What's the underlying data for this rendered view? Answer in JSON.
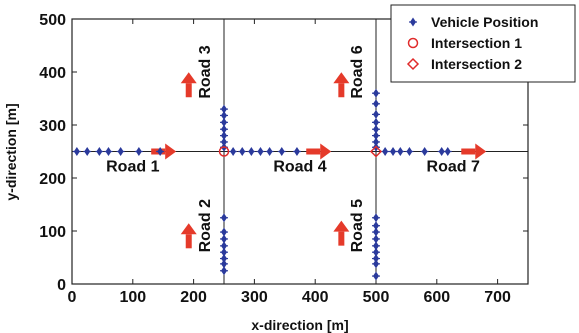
{
  "chart_data": {
    "type": "scatter",
    "title": "",
    "xlabel": "x-direction [m]",
    "ylabel": "y-direction [m]",
    "xlim": [
      0,
      750
    ],
    "ylim": [
      0,
      500
    ],
    "xticks": [
      0,
      100,
      200,
      300,
      400,
      500,
      600,
      700
    ],
    "yticks": [
      0,
      100,
      200,
      300,
      400,
      500
    ],
    "grid": false,
    "legend_position": "top-right",
    "colors": {
      "vehicle": "#2b3a9c",
      "intersection": "#e02b2b",
      "arrow": "#e53a2a",
      "road_line": "#222222"
    },
    "road_lines": [
      {
        "axis": "y",
        "value": 250
      },
      {
        "axis": "x",
        "value": 250
      },
      {
        "axis": "x",
        "value": 500
      }
    ],
    "series": [
      {
        "name": "Vehicle Position",
        "marker": "plus-diamond",
        "points": [
          [
            8,
            250
          ],
          [
            25,
            250
          ],
          [
            45,
            250
          ],
          [
            60,
            250
          ],
          [
            80,
            250
          ],
          [
            110,
            250
          ],
          [
            145,
            250
          ],
          [
            250,
            25
          ],
          [
            250,
            38
          ],
          [
            250,
            48
          ],
          [
            250,
            60
          ],
          [
            250,
            72
          ],
          [
            250,
            85
          ],
          [
            250,
            98
          ],
          [
            250,
            125
          ],
          [
            250,
            258
          ],
          [
            250,
            268
          ],
          [
            250,
            280
          ],
          [
            250,
            292
          ],
          [
            250,
            305
          ],
          [
            250,
            318
          ],
          [
            250,
            330
          ],
          [
            265,
            250
          ],
          [
            280,
            250
          ],
          [
            295,
            250
          ],
          [
            310,
            250
          ],
          [
            325,
            250
          ],
          [
            345,
            250
          ],
          [
            370,
            250
          ],
          [
            500,
            15
          ],
          [
            500,
            38
          ],
          [
            500,
            48
          ],
          [
            500,
            60
          ],
          [
            500,
            72
          ],
          [
            500,
            85
          ],
          [
            500,
            98
          ],
          [
            500,
            110
          ],
          [
            500,
            125
          ],
          [
            500,
            258
          ],
          [
            500,
            268
          ],
          [
            500,
            280
          ],
          [
            500,
            292
          ],
          [
            500,
            305
          ],
          [
            500,
            320
          ],
          [
            500,
            340
          ],
          [
            500,
            360
          ],
          [
            515,
            250
          ],
          [
            528,
            250
          ],
          [
            540,
            250
          ],
          [
            555,
            250
          ],
          [
            580,
            250
          ],
          [
            608,
            250
          ],
          [
            618,
            250
          ]
        ]
      },
      {
        "name": "Intersection 1",
        "marker": "circle",
        "points": [
          [
            250,
            250
          ]
        ]
      },
      {
        "name": "Intersection 2",
        "marker": "diamond",
        "points": [
          [
            500,
            250
          ]
        ]
      }
    ],
    "annotations": [
      {
        "text": "Road 1",
        "x": 100,
        "y": 220,
        "rotate": 0
      },
      {
        "text": "Road 2",
        "x": 220,
        "y": 110,
        "rotate": -90
      },
      {
        "text": "Road 3",
        "x": 220,
        "y": 400,
        "rotate": -90
      },
      {
        "text": "Road 4",
        "x": 375,
        "y": 220,
        "rotate": 0
      },
      {
        "text": "Road 5",
        "x": 470,
        "y": 110,
        "rotate": -90
      },
      {
        "text": "Road 6",
        "x": 470,
        "y": 400,
        "rotate": -90
      },
      {
        "text": "Road 7",
        "x": 627,
        "y": 220,
        "rotate": 0
      }
    ],
    "direction_arrows": [
      {
        "direction": "right",
        "x": 150,
        "y": 250
      },
      {
        "direction": "up",
        "x": 192,
        "y": 90
      },
      {
        "direction": "up",
        "x": 192,
        "y": 375
      },
      {
        "direction": "right",
        "x": 405,
        "y": 250
      },
      {
        "direction": "up",
        "x": 443,
        "y": 95
      },
      {
        "direction": "up",
        "x": 443,
        "y": 375
      },
      {
        "direction": "right",
        "x": 660,
        "y": 250
      }
    ]
  }
}
